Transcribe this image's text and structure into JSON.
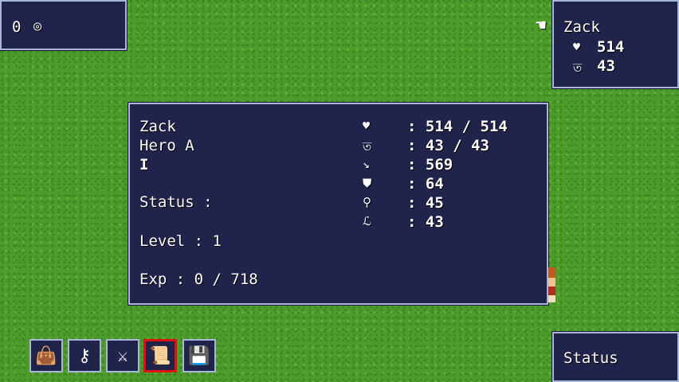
{
  "gold": {
    "amount": "0",
    "icon": "coin-icon"
  },
  "party": {
    "name": "Zack",
    "hp": "514",
    "mp": "43",
    "cursor_icon": "pointing-hand-icon"
  },
  "status_window": {
    "name": "Zack",
    "class": "Hero A",
    "nickname": "I",
    "status_label": "Status :",
    "level_label": "Level : 1",
    "exp_label": "Exp : 0 / 718",
    "stats": [
      {
        "icon": "heart-icon",
        "value": ": 514 / 514"
      },
      {
        "icon": "magic-icon",
        "value": ": 43 / 43"
      },
      {
        "icon": "sword-icon",
        "value": ": 569"
      },
      {
        "icon": "shield-icon",
        "value": ": 64"
      },
      {
        "icon": "wand-icon",
        "value": ": 45"
      },
      {
        "icon": "boot-icon",
        "value": ": 43"
      }
    ]
  },
  "menu": {
    "buttons": [
      {
        "name": "items",
        "icon": "bag-icon"
      },
      {
        "name": "skills",
        "icon": "staff-icon"
      },
      {
        "name": "equip",
        "icon": "equipment-icon"
      },
      {
        "name": "status",
        "icon": "scroll-icon",
        "selected": true
      },
      {
        "name": "save",
        "icon": "floppy-disk-icon"
      }
    ],
    "help_text": "Status"
  },
  "colors": {
    "panel": "#20234a",
    "border": "#a9b6dc",
    "selection": "#e01010",
    "grass": "#4e9a2a"
  }
}
